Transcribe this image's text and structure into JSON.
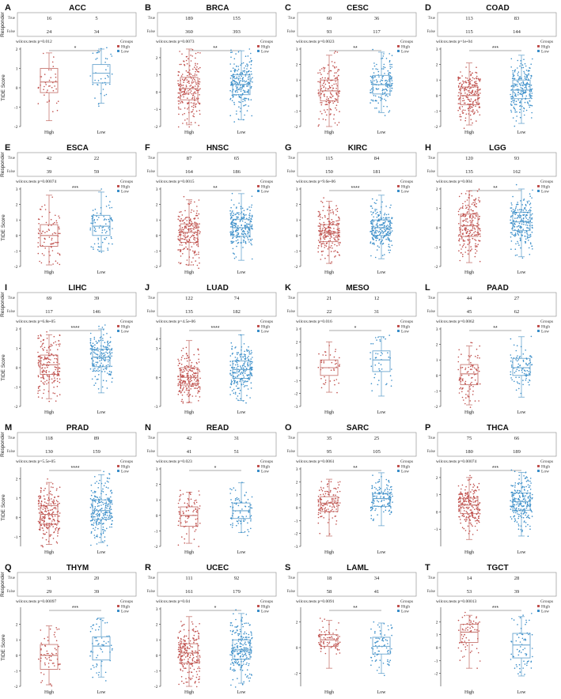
{
  "labels": {
    "responder": "Responder",
    "tide_score": "TIDE Score",
    "row_true": "True",
    "row_false": "False",
    "legend_title": "Groups",
    "legend_high": "High",
    "legend_low": "Low",
    "cat_high": "High",
    "cat_low": "Low"
  },
  "colors": {
    "high": "#c0504d",
    "low": "#3a8ec9",
    "box_high": "#c87a74",
    "box_low": "#6aa6cf"
  },
  "chart_data": [
    {
      "letter": "A",
      "title": "ACC",
      "type": "box",
      "table": {
        "true": [
          16,
          5
        ],
        "false": [
          24,
          34
        ]
      },
      "test": "wilcox.tests p=0.012",
      "signif": "*",
      "ylim": [
        -2,
        2
      ],
      "yticks": [
        -2,
        -1,
        0,
        1,
        2
      ],
      "show_tide_label": true,
      "high": {
        "min": -1.7,
        "q1": -0.25,
        "median": 0.3,
        "q3": 1.0,
        "max": 1.8,
        "n": 40
      },
      "low": {
        "min": -0.8,
        "q1": 0.25,
        "median": 0.75,
        "q3": 1.2,
        "max": 2.0,
        "n": 39
      }
    },
    {
      "letter": "B",
      "title": "BRCA",
      "type": "box",
      "table": {
        "true": [
          189,
          155
        ],
        "false": [
          360,
          393
        ]
      },
      "test": "wilcox.tests p=0.0073",
      "signif": "**",
      "ylim": [
        -2,
        2.5
      ],
      "yticks": [
        -2,
        -1,
        0,
        1,
        2
      ],
      "show_tide_label": false,
      "high": {
        "min": -1.9,
        "q1": -0.45,
        "median": 0.2,
        "q3": 0.85,
        "max": 2.5,
        "n": 549
      },
      "low": {
        "min": -1.6,
        "q1": -0.15,
        "median": 0.45,
        "q3": 1.0,
        "max": 2.4,
        "n": 548
      }
    },
    {
      "letter": "C",
      "title": "CESC",
      "type": "box",
      "table": {
        "true": [
          60,
          36
        ],
        "false": [
          93,
          117
        ]
      },
      "test": "wilcox.tests p=0.0023",
      "signif": "**",
      "ylim": [
        -2,
        3
      ],
      "yticks": [
        -2,
        -1,
        0,
        1,
        2,
        3
      ],
      "show_tide_label": false,
      "high": {
        "min": -2.0,
        "q1": -0.35,
        "median": 0.3,
        "q3": 1.0,
        "max": 2.6,
        "n": 153
      },
      "low": {
        "min": -1.1,
        "q1": 0.1,
        "median": 0.7,
        "q3": 1.3,
        "max": 2.8,
        "n": 153
      }
    },
    {
      "letter": "D",
      "title": "COAD",
      "type": "box",
      "table": {
        "true": [
          113,
          83
        ],
        "false": [
          115,
          144
        ]
      },
      "test": "wilcox.tests p=1e-04",
      "signif": "***",
      "ylim": [
        -2,
        3
      ],
      "yticks": [
        -2,
        -1,
        0,
        1,
        2,
        3
      ],
      "show_tide_label": false,
      "high": {
        "min": -1.9,
        "q1": -0.6,
        "median": 0.0,
        "q3": 0.55,
        "max": 2.1,
        "n": 228
      },
      "low": {
        "min": -1.8,
        "q1": -0.2,
        "median": 0.35,
        "q3": 1.0,
        "max": 2.6,
        "n": 227
      }
    },
    {
      "letter": "E",
      "title": "ESCA",
      "type": "box",
      "table": {
        "true": [
          42,
          22
        ],
        "false": [
          39,
          59
        ]
      },
      "test": "wilcox.tests p=0.00074",
      "signif": "***",
      "ylim": [
        -2,
        3
      ],
      "yticks": [
        -2,
        -1,
        0,
        1,
        2,
        3
      ],
      "show_tide_label": true,
      "high": {
        "min": -1.9,
        "q1": -0.7,
        "median": 0.0,
        "q3": 0.7,
        "max": 2.6,
        "n": 81
      },
      "low": {
        "min": -1.0,
        "q1": 0.0,
        "median": 0.6,
        "q3": 1.3,
        "max": 2.8,
        "n": 81
      }
    },
    {
      "letter": "F",
      "title": "HNSC",
      "type": "box",
      "table": {
        "true": [
          87,
          65
        ],
        "false": [
          164,
          186
        ]
      },
      "test": "wilcox.tests p=0.0015",
      "signif": "**",
      "ylim": [
        -2,
        3
      ],
      "yticks": [
        -2,
        -1,
        0,
        1,
        2,
        3
      ],
      "show_tide_label": false,
      "high": {
        "min": -1.9,
        "q1": -0.45,
        "median": 0.2,
        "q3": 0.75,
        "max": 2.3,
        "n": 251
      },
      "low": {
        "min": -1.6,
        "q1": -0.05,
        "median": 0.5,
        "q3": 1.05,
        "max": 2.7,
        "n": 251
      }
    },
    {
      "letter": "G",
      "title": "KIRC",
      "type": "box",
      "table": {
        "true": [
          115,
          84
        ],
        "false": [
          150,
          181
        ]
      },
      "test": "wilcox.tests p=9.6e-06",
      "signif": "****",
      "ylim": [
        -2,
        3
      ],
      "yticks": [
        -2,
        -1,
        0,
        1,
        2,
        3
      ],
      "show_tide_label": false,
      "high": {
        "min": -1.8,
        "q1": -0.4,
        "median": 0.15,
        "q3": 0.7,
        "max": 2.2,
        "n": 265
      },
      "low": {
        "min": -1.5,
        "q1": 0.0,
        "median": 0.5,
        "q3": 1.0,
        "max": 2.6,
        "n": 265
      }
    },
    {
      "letter": "H",
      "title": "LGG",
      "type": "box",
      "table": {
        "true": [
          120,
          93
        ],
        "false": [
          135,
          162
        ]
      },
      "test": "wilcox.tests p=0.004",
      "signif": "**",
      "ylim": [
        -2,
        2
      ],
      "yticks": [
        -2,
        -1,
        0,
        1,
        2
      ],
      "show_tide_label": false,
      "high": {
        "min": -1.8,
        "q1": -0.45,
        "median": 0.1,
        "q3": 0.7,
        "max": 1.9,
        "n": 255
      },
      "low": {
        "min": -1.5,
        "q1": -0.15,
        "median": 0.3,
        "q3": 0.8,
        "max": 2.0,
        "n": 255
      }
    },
    {
      "letter": "I",
      "title": "LIHC",
      "type": "box",
      "table": {
        "true": [
          69,
          39
        ],
        "false": [
          117,
          146
        ]
      },
      "test": "wilcox.tests p=6.8e-05",
      "signif": "****",
      "ylim": [
        -2,
        2
      ],
      "yticks": [
        -2,
        -1,
        0,
        1,
        2
      ],
      "show_tide_label": true,
      "high": {
        "min": -1.6,
        "q1": -0.35,
        "median": 0.15,
        "q3": 0.65,
        "max": 1.7,
        "n": 186
      },
      "low": {
        "min": -1.3,
        "q1": 0.05,
        "median": 0.55,
        "q3": 0.95,
        "max": 2.0,
        "n": 185
      }
    },
    {
      "letter": "J",
      "title": "LUAD",
      "type": "box",
      "table": {
        "true": [
          122,
          74
        ],
        "false": [
          135,
          182
        ]
      },
      "test": "wilcox.tests p=4.5e-06",
      "signif": "****",
      "ylim": [
        -3,
        5
      ],
      "yticks": [
        -3,
        0,
        3
      ],
      "yticks_extra": [
        4
      ],
      "show_tide_label": false,
      "high": {
        "min": -2.6,
        "q1": -0.8,
        "median": 0.0,
        "q3": 1.0,
        "max": 3.8,
        "n": 257
      },
      "low": {
        "min": -2.4,
        "q1": -0.1,
        "median": 0.8,
        "q3": 1.7,
        "max": 4.4,
        "n": 256
      }
    },
    {
      "letter": "K",
      "title": "MESO",
      "type": "box",
      "table": {
        "true": [
          21,
          12
        ],
        "false": [
          22,
          31
        ]
      },
      "test": "wilcox.tests p=0.016",
      "signif": "*",
      "ylim": [
        -3,
        3
      ],
      "yticks": [
        -3,
        -2,
        -1,
        0,
        1,
        2,
        3
      ],
      "show_tide_label": false,
      "high": {
        "min": -1.9,
        "q1": -0.6,
        "median": 0.0,
        "q3": 0.6,
        "max": 2.0,
        "n": 43
      },
      "low": {
        "min": -2.2,
        "q1": -0.3,
        "median": 0.6,
        "q3": 1.3,
        "max": 2.4,
        "n": 43
      }
    },
    {
      "letter": "L",
      "title": "PAAD",
      "type": "box",
      "table": {
        "true": [
          44,
          27
        ],
        "false": [
          45,
          62
        ]
      },
      "test": "wilcox.tests p=0.0062",
      "signif": "**",
      "ylim": [
        -2,
        3
      ],
      "yticks": [
        -2,
        -1,
        0,
        1,
        2,
        3
      ],
      "show_tide_label": false,
      "high": {
        "min": -1.9,
        "q1": -0.6,
        "median": 0.1,
        "q3": 0.7,
        "max": 1.9,
        "n": 89
      },
      "low": {
        "min": -1.4,
        "q1": 0.0,
        "median": 0.5,
        "q3": 1.1,
        "max": 2.5,
        "n": 89
      }
    },
    {
      "letter": "M",
      "title": "PRAD",
      "type": "box",
      "table": {
        "true": [
          118,
          89
        ],
        "false": [
          130,
          159
        ]
      },
      "test": "wilcox.tests p=5.5e-05",
      "signif": "****",
      "ylim": [
        -1.5,
        2.5
      ],
      "yticks": [
        -1,
        0,
        1,
        2
      ],
      "show_tide_label": true,
      "high": {
        "min": -1.4,
        "q1": -0.35,
        "median": 0.15,
        "q3": 0.6,
        "max": 1.8,
        "n": 248
      },
      "low": {
        "min": -1.3,
        "q1": -0.1,
        "median": 0.35,
        "q3": 0.9,
        "max": 2.2,
        "n": 248
      }
    },
    {
      "letter": "N",
      "title": "READ",
      "type": "box",
      "table": {
        "true": [
          42,
          31
        ],
        "false": [
          41,
          51
        ]
      },
      "test": "wilcox.tests p=0.023",
      "signif": "*",
      "ylim": [
        -2,
        3
      ],
      "yticks": [
        -2,
        -1,
        0,
        1,
        2,
        3
      ],
      "show_tide_label": false,
      "high": {
        "min": -1.8,
        "q1": -0.7,
        "median": 0.0,
        "q3": 0.55,
        "max": 1.5,
        "n": 83
      },
      "low": {
        "min": -1.1,
        "q1": -0.2,
        "median": 0.3,
        "q3": 0.8,
        "max": 2.1,
        "n": 82
      }
    },
    {
      "letter": "O",
      "title": "SARC",
      "type": "box",
      "table": {
        "true": [
          35,
          25
        ],
        "false": [
          95,
          105
        ]
      },
      "test": "wilcox.tests p=0.0061",
      "signif": "**",
      "ylim": [
        -3,
        3
      ],
      "yticks": [
        -3,
        -2,
        -1,
        0,
        1,
        2,
        3
      ],
      "show_tide_label": false,
      "high": {
        "min": -2.2,
        "q1": -0.3,
        "median": 0.35,
        "q3": 0.85,
        "max": 2.2,
        "n": 130
      },
      "low": {
        "min": -1.4,
        "q1": 0.1,
        "median": 0.7,
        "q3": 1.1,
        "max": 2.7,
        "n": 130
      }
    },
    {
      "letter": "P",
      "title": "THCA",
      "type": "box",
      "table": {
        "true": [
          75,
          66
        ],
        "false": [
          180,
          189
        ]
      },
      "test": "wilcox.tests p=0.00074",
      "signif": "***",
      "ylim": [
        -2,
        2.5
      ],
      "yticks": [
        -1,
        0,
        1,
        2
      ],
      "show_tide_label": false,
      "high": {
        "min": -1.6,
        "q1": -0.1,
        "median": 0.4,
        "q3": 0.8,
        "max": 2.0,
        "n": 255
      },
      "low": {
        "min": -1.4,
        "q1": 0.1,
        "median": 0.6,
        "q3": 1.1,
        "max": 2.3,
        "n": 255
      }
    },
    {
      "letter": "Q",
      "title": "THYM",
      "type": "box",
      "table": {
        "true": [
          31,
          20
        ],
        "false": [
          29,
          39
        ]
      },
      "test": "wilcox.tests p=0.00097",
      "signif": "***",
      "ylim": [
        -2,
        3
      ],
      "yticks": [
        -2,
        -1,
        0,
        1,
        2
      ],
      "show_tide_label": true,
      "high": {
        "min": -1.9,
        "q1": -0.9,
        "median": 0.0,
        "q3": 0.7,
        "max": 1.9,
        "n": 60
      },
      "low": {
        "min": -1.4,
        "q1": -0.3,
        "median": 0.6,
        "q3": 1.2,
        "max": 2.4,
        "n": 59
      }
    },
    {
      "letter": "R",
      "title": "UCEC",
      "type": "box",
      "table": {
        "true": [
          111,
          92
        ],
        "false": [
          161,
          179
        ]
      },
      "test": "wilcox.tests p=0.04",
      "signif": "*",
      "ylim": [
        -2,
        3
      ],
      "yticks": [
        -2,
        -1,
        0,
        1,
        2,
        3
      ],
      "show_tide_label": false,
      "high": {
        "min": -2.0,
        "q1": -0.5,
        "median": 0.15,
        "q3": 0.75,
        "max": 2.5,
        "n": 272
      },
      "low": {
        "min": -1.8,
        "q1": -0.25,
        "median": 0.35,
        "q3": 1.0,
        "max": 2.7,
        "n": 271
      }
    },
    {
      "letter": "S",
      "title": "LAML",
      "type": "box",
      "table": {
        "true": [
          18,
          34
        ],
        "false": [
          58,
          41
        ]
      },
      "test": "wilcox.tests p=0.0091",
      "signif": "**",
      "ylim": [
        -3,
        3
      ],
      "yticks": [
        -2,
        0,
        2
      ],
      "show_tide_label": false,
      "high": {
        "min": -1.6,
        "q1": 0.1,
        "median": 0.6,
        "q3": 1.0,
        "max": 2.1,
        "n": 76
      },
      "low": {
        "min": -2.0,
        "q1": -0.5,
        "median": 0.1,
        "q3": 0.8,
        "max": 1.9,
        "n": 75
      }
    },
    {
      "letter": "T",
      "title": "TGCT",
      "type": "box",
      "table": {
        "true": [
          14,
          28
        ],
        "false": [
          53,
          39
        ]
      },
      "test": "wilcox.tests p=0.00013",
      "signif": "***",
      "ylim": [
        -3,
        3
      ],
      "yticks": [
        -2,
        -1,
        0,
        1,
        2
      ],
      "show_tide_label": false,
      "high": {
        "min": -1.6,
        "q1": 0.4,
        "median": 1.2,
        "q3": 1.8,
        "max": 2.5,
        "n": 67
      },
      "low": {
        "min": -2.2,
        "q1": -0.8,
        "median": 0.2,
        "q3": 1.1,
        "max": 2.4,
        "n": 67
      }
    }
  ]
}
